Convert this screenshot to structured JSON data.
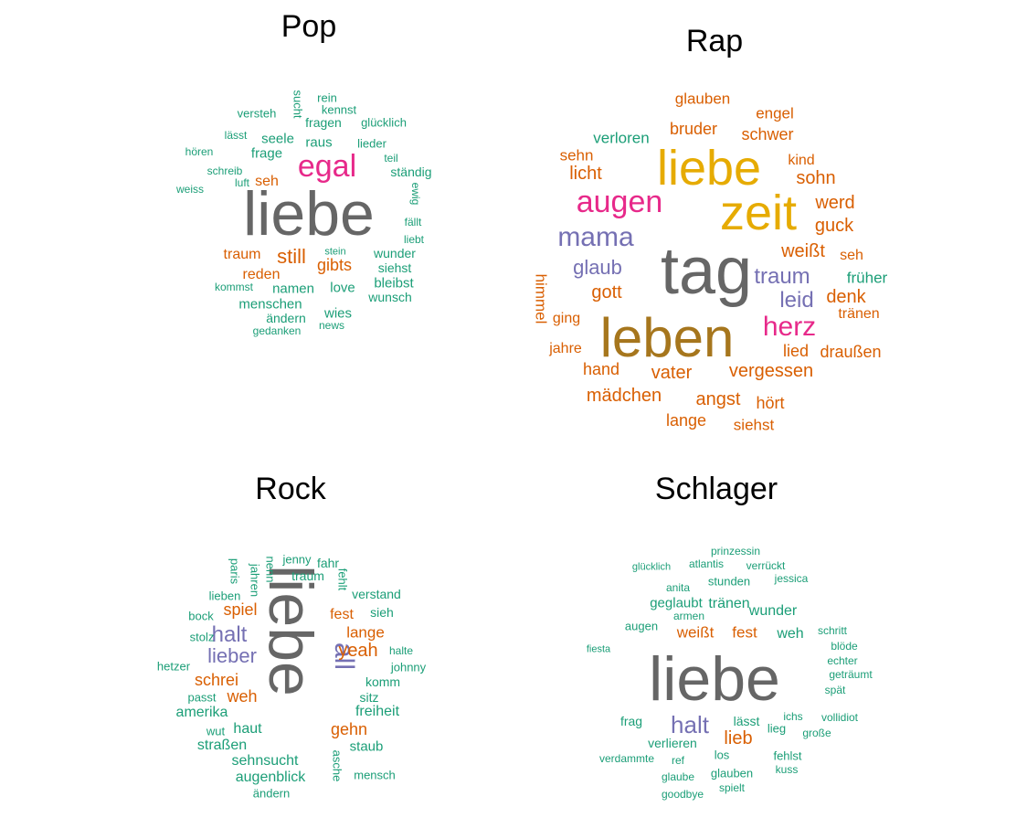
{
  "chart_data": [
    {
      "type": "wordcloud",
      "title": "Pop",
      "words": [
        {
          "text": "liebe",
          "size": 5,
          "color": "#666666"
        },
        {
          "text": "egal",
          "size": 4,
          "color": "#e7298a"
        },
        {
          "text": "still",
          "size": 3,
          "color": "#d95f02"
        },
        {
          "text": "gibts",
          "size": 3,
          "color": "#d95f02"
        },
        {
          "text": "reden",
          "size": 2.5,
          "color": "#d95f02"
        },
        {
          "text": "traum",
          "size": 2.5,
          "color": "#d95f02"
        },
        {
          "text": "seh",
          "size": 2.5,
          "color": "#d95f02"
        },
        {
          "text": "frage",
          "size": 2,
          "color": "#1b9e77"
        },
        {
          "text": "seele",
          "size": 2,
          "color": "#1b9e77"
        },
        {
          "text": "raus",
          "size": 2,
          "color": "#1b9e77"
        },
        {
          "text": "namen",
          "size": 2,
          "color": "#1b9e77"
        },
        {
          "text": "love",
          "size": 2,
          "color": "#1b9e77"
        },
        {
          "text": "bleibst",
          "size": 2,
          "color": "#1b9e77"
        },
        {
          "text": "wunsch",
          "size": 2,
          "color": "#1b9e77"
        },
        {
          "text": "wunder",
          "size": 2,
          "color": "#1b9e77"
        },
        {
          "text": "siehst",
          "size": 2,
          "color": "#1b9e77"
        },
        {
          "text": "menschen",
          "size": 2,
          "color": "#1b9e77"
        },
        {
          "text": "wies",
          "size": 2,
          "color": "#1b9e77"
        },
        {
          "text": "ändern",
          "size": 2,
          "color": "#1b9e77"
        },
        {
          "text": "ständig",
          "size": 2,
          "color": "#1b9e77"
        },
        {
          "text": "fragen",
          "size": 1.5,
          "color": "#1b9e77"
        },
        {
          "text": "glücklich",
          "size": 1.5,
          "color": "#1b9e77"
        },
        {
          "text": "kennst",
          "size": 1.5,
          "color": "#1b9e77"
        },
        {
          "text": "rein",
          "size": 1.5,
          "color": "#1b9e77"
        },
        {
          "text": "sucht",
          "size": 1.5,
          "color": "#1b9e77"
        },
        {
          "text": "versteh",
          "size": 1.5,
          "color": "#1b9e77"
        },
        {
          "text": "lässt",
          "size": 1.5,
          "color": "#1b9e77"
        },
        {
          "text": "hören",
          "size": 1.5,
          "color": "#1b9e77"
        },
        {
          "text": "lieder",
          "size": 1.5,
          "color": "#1b9e77"
        },
        {
          "text": "teil",
          "size": 1.5,
          "color": "#1b9e77"
        },
        {
          "text": "schreib",
          "size": 1.5,
          "color": "#1b9e77"
        },
        {
          "text": "luft",
          "size": 1.5,
          "color": "#1b9e77"
        },
        {
          "text": "weiss",
          "size": 1.5,
          "color": "#1b9e77"
        },
        {
          "text": "ewig",
          "size": 1.5,
          "color": "#1b9e77"
        },
        {
          "text": "fällt",
          "size": 1.5,
          "color": "#1b9e77"
        },
        {
          "text": "liebt",
          "size": 1.5,
          "color": "#1b9e77"
        },
        {
          "text": "stein",
          "size": 1.5,
          "color": "#1b9e77"
        },
        {
          "text": "kommst",
          "size": 1.5,
          "color": "#1b9e77"
        },
        {
          "text": "gedanken",
          "size": 1.5,
          "color": "#1b9e77"
        },
        {
          "text": "news",
          "size": 1.5,
          "color": "#1b9e77"
        }
      ]
    },
    {
      "type": "wordcloud",
      "title": "Rap",
      "words": [
        {
          "text": "tag",
          "size": 5,
          "color": "#666666"
        },
        {
          "text": "leben",
          "size": 5,
          "color": "#a6761d"
        },
        {
          "text": "liebe",
          "size": 4.5,
          "color": "#e6ab02"
        },
        {
          "text": "zeit",
          "size": 4.5,
          "color": "#e6ab02"
        },
        {
          "text": "augen",
          "size": 3.5,
          "color": "#e7298a"
        },
        {
          "text": "herz",
          "size": 3.5,
          "color": "#e7298a"
        },
        {
          "text": "mama",
          "size": 3.5,
          "color": "#7570b3"
        },
        {
          "text": "glaub",
          "size": 3,
          "color": "#7570b3"
        },
        {
          "text": "traum",
          "size": 3,
          "color": "#7570b3"
        },
        {
          "text": "leid",
          "size": 3,
          "color": "#7570b3"
        },
        {
          "text": "gott",
          "size": 2.5,
          "color": "#d95f02"
        },
        {
          "text": "weißt",
          "size": 2.5,
          "color": "#d95f02"
        },
        {
          "text": "licht",
          "size": 2.5,
          "color": "#d95f02"
        },
        {
          "text": "sohn",
          "size": 2.5,
          "color": "#d95f02"
        },
        {
          "text": "werd",
          "size": 2.5,
          "color": "#d95f02"
        },
        {
          "text": "guck",
          "size": 2.5,
          "color": "#d95f02"
        },
        {
          "text": "denk",
          "size": 2.5,
          "color": "#d95f02"
        },
        {
          "text": "vater",
          "size": 2.5,
          "color": "#d95f02"
        },
        {
          "text": "vergessen",
          "size": 2.5,
          "color": "#d95f02"
        },
        {
          "text": "mädchen",
          "size": 2.5,
          "color": "#d95f02"
        },
        {
          "text": "angst",
          "size": 2.5,
          "color": "#d95f02"
        },
        {
          "text": "hand",
          "size": 2,
          "color": "#d95f02"
        },
        {
          "text": "schwer",
          "size": 2,
          "color": "#d95f02"
        },
        {
          "text": "bruder",
          "size": 2,
          "color": "#d95f02"
        },
        {
          "text": "glauben",
          "size": 2,
          "color": "#d95f02"
        },
        {
          "text": "engel",
          "size": 2,
          "color": "#d95f02"
        },
        {
          "text": "sehn",
          "size": 2,
          "color": "#d95f02"
        },
        {
          "text": "kind",
          "size": 2,
          "color": "#d95f02"
        },
        {
          "text": "seh",
          "size": 2,
          "color": "#d95f02"
        },
        {
          "text": "tränen",
          "size": 2,
          "color": "#d95f02"
        },
        {
          "text": "lied",
          "size": 2,
          "color": "#d95f02"
        },
        {
          "text": "draußen",
          "size": 2,
          "color": "#d95f02"
        },
        {
          "text": "hört",
          "size": 2,
          "color": "#d95f02"
        },
        {
          "text": "lange",
          "size": 2,
          "color": "#d95f02"
        },
        {
          "text": "siehst",
          "size": 2,
          "color": "#d95f02"
        },
        {
          "text": "jahre",
          "size": 2,
          "color": "#d95f02"
        },
        {
          "text": "ging",
          "size": 2,
          "color": "#d95f02"
        },
        {
          "text": "himmel",
          "size": 2,
          "color": "#d95f02"
        },
        {
          "text": "verloren",
          "size": 2,
          "color": "#1b9e77"
        },
        {
          "text": "früher",
          "size": 2,
          "color": "#1b9e77"
        }
      ]
    },
    {
      "type": "wordcloud",
      "title": "Rock",
      "words": [
        {
          "text": "liebe",
          "size": 5,
          "color": "#666666"
        },
        {
          "text": "all",
          "size": 3.5,
          "color": "#7570b3"
        },
        {
          "text": "halt",
          "size": 3,
          "color": "#7570b3"
        },
        {
          "text": "lieber",
          "size": 3,
          "color": "#7570b3"
        },
        {
          "text": "yeah",
          "size": 2.5,
          "color": "#d95f02"
        },
        {
          "text": "spiel",
          "size": 2.5,
          "color": "#d95f02"
        },
        {
          "text": "schrei",
          "size": 2.5,
          "color": "#d95f02"
        },
        {
          "text": "weh",
          "size": 2.5,
          "color": "#d95f02"
        },
        {
          "text": "gehn",
          "size": 2.5,
          "color": "#d95f02"
        },
        {
          "text": "lange",
          "size": 2,
          "color": "#d95f02"
        },
        {
          "text": "fest",
          "size": 2,
          "color": "#d95f02"
        },
        {
          "text": "freiheit",
          "size": 2,
          "color": "#1b9e77"
        },
        {
          "text": "amerika",
          "size": 2,
          "color": "#1b9e77"
        },
        {
          "text": "haut",
          "size": 2,
          "color": "#1b9e77"
        },
        {
          "text": "straßen",
          "size": 2,
          "color": "#1b9e77"
        },
        {
          "text": "sehnsucht",
          "size": 2,
          "color": "#1b9e77"
        },
        {
          "text": "augenblick",
          "size": 2,
          "color": "#1b9e77"
        },
        {
          "text": "staub",
          "size": 2,
          "color": "#1b9e77"
        },
        {
          "text": "komm",
          "size": 1.5,
          "color": "#1b9e77"
        },
        {
          "text": "sitz",
          "size": 1.5,
          "color": "#1b9e77"
        },
        {
          "text": "verstand",
          "size": 1.5,
          "color": "#1b9e77"
        },
        {
          "text": "sieh",
          "size": 1.5,
          "color": "#1b9e77"
        },
        {
          "text": "traum",
          "size": 1.5,
          "color": "#1b9e77"
        },
        {
          "text": "jenny",
          "size": 1.5,
          "color": "#1b9e77"
        },
        {
          "text": "fahr",
          "size": 1.5,
          "color": "#1b9e77"
        },
        {
          "text": "nenn",
          "size": 1.5,
          "color": "#1b9e77"
        },
        {
          "text": "jahren",
          "size": 1.5,
          "color": "#1b9e77"
        },
        {
          "text": "paris",
          "size": 1.5,
          "color": "#1b9e77"
        },
        {
          "text": "fehlt",
          "size": 1.5,
          "color": "#1b9e77"
        },
        {
          "text": "lieben",
          "size": 1.5,
          "color": "#1b9e77"
        },
        {
          "text": "bock",
          "size": 1.5,
          "color": "#1b9e77"
        },
        {
          "text": "stolz",
          "size": 1.5,
          "color": "#1b9e77"
        },
        {
          "text": "hetzer",
          "size": 1.5,
          "color": "#1b9e77"
        },
        {
          "text": "passt",
          "size": 1.5,
          "color": "#1b9e77"
        },
        {
          "text": "wut",
          "size": 1.5,
          "color": "#1b9e77"
        },
        {
          "text": "halte",
          "size": 1.5,
          "color": "#1b9e77"
        },
        {
          "text": "johnny",
          "size": 1.5,
          "color": "#1b9e77"
        },
        {
          "text": "asche",
          "size": 1.5,
          "color": "#1b9e77"
        },
        {
          "text": "mensch",
          "size": 1.5,
          "color": "#1b9e77"
        },
        {
          "text": "ändern",
          "size": 1.5,
          "color": "#1b9e77"
        }
      ]
    },
    {
      "type": "wordcloud",
      "title": "Schlager",
      "words": [
        {
          "text": "liebe",
          "size": 5,
          "color": "#666666"
        },
        {
          "text": "halt",
          "size": 3,
          "color": "#7570b3"
        },
        {
          "text": "lieb",
          "size": 2.5,
          "color": "#d95f02"
        },
        {
          "text": "weißt",
          "size": 2.5,
          "color": "#d95f02"
        },
        {
          "text": "fest",
          "size": 2.5,
          "color": "#d95f02"
        },
        {
          "text": "weh",
          "size": 2,
          "color": "#1b9e77"
        },
        {
          "text": "wunder",
          "size": 2,
          "color": "#1b9e77"
        },
        {
          "text": "tränen",
          "size": 2,
          "color": "#1b9e77"
        },
        {
          "text": "geglaubt",
          "size": 2,
          "color": "#1b9e77"
        },
        {
          "text": "augen",
          "size": 1.5,
          "color": "#1b9e77"
        },
        {
          "text": "lässt",
          "size": 1.5,
          "color": "#1b9e77"
        },
        {
          "text": "verlieren",
          "size": 1.5,
          "color": "#1b9e77"
        },
        {
          "text": "frag",
          "size": 1.5,
          "color": "#1b9e77"
        },
        {
          "text": "stunden",
          "size": 1.5,
          "color": "#1b9e77"
        },
        {
          "text": "anita",
          "size": 1.5,
          "color": "#1b9e77"
        },
        {
          "text": "armen",
          "size": 1.5,
          "color": "#1b9e77"
        },
        {
          "text": "prinzessin",
          "size": 1.5,
          "color": "#1b9e77"
        },
        {
          "text": "atlantis",
          "size": 1.5,
          "color": "#1b9e77"
        },
        {
          "text": "verrückt",
          "size": 1.5,
          "color": "#1b9e77"
        },
        {
          "text": "glücklich",
          "size": 1.5,
          "color": "#1b9e77"
        },
        {
          "text": "jessica",
          "size": 1.5,
          "color": "#1b9e77"
        },
        {
          "text": "fiesta",
          "size": 1.5,
          "color": "#1b9e77"
        },
        {
          "text": "schritt",
          "size": 1.5,
          "color": "#1b9e77"
        },
        {
          "text": "blöde",
          "size": 1.5,
          "color": "#1b9e77"
        },
        {
          "text": "echter",
          "size": 1.5,
          "color": "#1b9e77"
        },
        {
          "text": "geträumt",
          "size": 1.5,
          "color": "#1b9e77"
        },
        {
          "text": "spät",
          "size": 1.5,
          "color": "#1b9e77"
        },
        {
          "text": "ichs",
          "size": 1.5,
          "color": "#1b9e77"
        },
        {
          "text": "vollidiot",
          "size": 1.5,
          "color": "#1b9e77"
        },
        {
          "text": "lieg",
          "size": 1.5,
          "color": "#1b9e77"
        },
        {
          "text": "große",
          "size": 1.5,
          "color": "#1b9e77"
        },
        {
          "text": "los",
          "size": 1.5,
          "color": "#1b9e77"
        },
        {
          "text": "ref",
          "size": 1.5,
          "color": "#1b9e77"
        },
        {
          "text": "verdammte",
          "size": 1.5,
          "color": "#1b9e77"
        },
        {
          "text": "fehlst",
          "size": 1.5,
          "color": "#1b9e77"
        },
        {
          "text": "kuss",
          "size": 1.5,
          "color": "#1b9e77"
        },
        {
          "text": "glaube",
          "size": 1.5,
          "color": "#1b9e77"
        },
        {
          "text": "glauben",
          "size": 1.5,
          "color": "#1b9e77"
        },
        {
          "text": "spielt",
          "size": 1.5,
          "color": "#1b9e77"
        },
        {
          "text": "goodbye",
          "size": 1.5,
          "color": "#1b9e77"
        }
      ]
    }
  ]
}
